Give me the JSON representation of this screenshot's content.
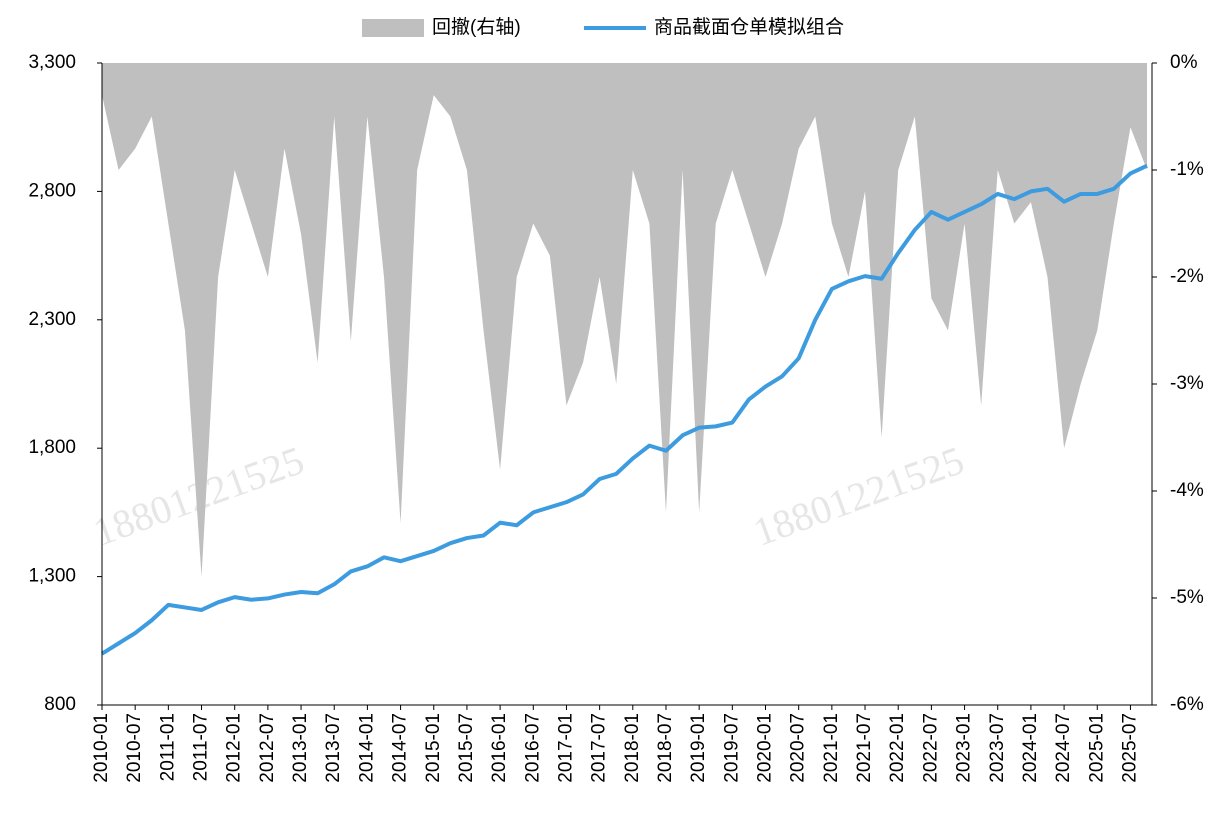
{
  "chart_data": {
    "type": "line-area",
    "watermark": "18801221525",
    "categories": [
      "2010-01",
      null,
      "2010-07",
      null,
      "2011-01",
      null,
      "2011-07",
      null,
      "2012-01",
      null,
      "2012-07",
      null,
      "2013-01",
      null,
      "2013-07",
      null,
      "2014-01",
      null,
      "2014-07",
      null,
      "2015-01",
      null,
      "2015-07",
      null,
      "2016-01",
      null,
      "2016-07",
      null,
      "2017-01",
      null,
      "2017-07",
      null,
      "2018-01",
      null,
      "2018-07",
      null,
      "2019-01",
      null,
      "2019-07",
      null,
      "2020-01",
      null,
      "2020-07",
      null,
      "2021-01",
      null,
      "2021-07",
      null,
      "2022-01",
      null,
      "2022-07",
      null,
      "2023-01",
      null,
      "2023-07",
      null,
      "2024-01",
      null,
      "2024-07",
      null,
      "2025-01",
      null,
      "2025-07",
      null
    ],
    "series": [
      {
        "name": "回撤(右轴)",
        "color": "#bfbfbf",
        "axis": "y2",
        "kind": "area",
        "values": [
          -0.3,
          -1.0,
          -0.8,
          -0.5,
          -1.5,
          -2.5,
          -4.8,
          -2.0,
          -1.0,
          -1.5,
          -2.0,
          -0.8,
          -1.6,
          -2.8,
          -0.5,
          -2.6,
          -0.5,
          -2.0,
          -4.3,
          -1.0,
          -0.3,
          -0.5,
          -1.0,
          -2.5,
          -3.8,
          -2.0,
          -1.5,
          -1.8,
          -3.2,
          -2.8,
          -2.0,
          -3.0,
          -1.0,
          -1.5,
          -4.2,
          -1.0,
          -4.2,
          -1.5,
          -1.0,
          -1.5,
          -2.0,
          -1.5,
          -0.8,
          -0.5,
          -1.5,
          -2.0,
          -1.2,
          -3.5,
          -1.0,
          -0.5,
          -2.2,
          -2.5,
          -1.5,
          -3.2,
          -1.0,
          -1.5,
          -1.3,
          -2.0,
          -3.6,
          -3.0,
          -2.5,
          -1.5,
          -0.6,
          -1.0
        ]
      },
      {
        "name": "商品截面仓单模拟组合",
        "color": "#3d9be0",
        "kind": "line",
        "values": [
          1000,
          1040,
          1080,
          1130,
          1190,
          1180,
          1170,
          1200,
          1220,
          1210,
          1215,
          1230,
          1240,
          1235,
          1270,
          1320,
          1340,
          1375,
          1360,
          1380,
          1400,
          1430,
          1450,
          1460,
          1510,
          1500,
          1550,
          1570,
          1590,
          1620,
          1680,
          1700,
          1760,
          1810,
          1790,
          1850,
          1880,
          1885,
          1900,
          1990,
          2040,
          2080,
          2150,
          2300,
          2420,
          2450,
          2470,
          2460,
          2560,
          2650,
          2720,
          2690,
          2720,
          2750,
          2790,
          2770,
          2800,
          2810,
          2760,
          2790,
          2790,
          2810,
          2870,
          2900
        ]
      }
    ],
    "ylim": [
      800,
      3300
    ],
    "yticks": [
      {
        "value": 800,
        "label": "800"
      },
      {
        "value": 1300,
        "label": "1,300"
      },
      {
        "value": 1800,
        "label": "1,800"
      },
      {
        "value": 2300,
        "label": "2,300"
      },
      {
        "value": 2800,
        "label": "2,800"
      },
      {
        "value": 3300,
        "label": "3,300"
      }
    ],
    "y2lim": [
      -6,
      0
    ],
    "y2ticks": [
      {
        "value": 0,
        "label": "0%"
      },
      {
        "value": -1,
        "label": "-1%"
      },
      {
        "value": -2,
        "label": "-2%"
      },
      {
        "value": -3,
        "label": "-3%"
      },
      {
        "value": -4,
        "label": "-4%"
      },
      {
        "value": -5,
        "label": "-5%"
      },
      {
        "value": -6,
        "label": "-6%"
      }
    ],
    "legend": "top"
  }
}
